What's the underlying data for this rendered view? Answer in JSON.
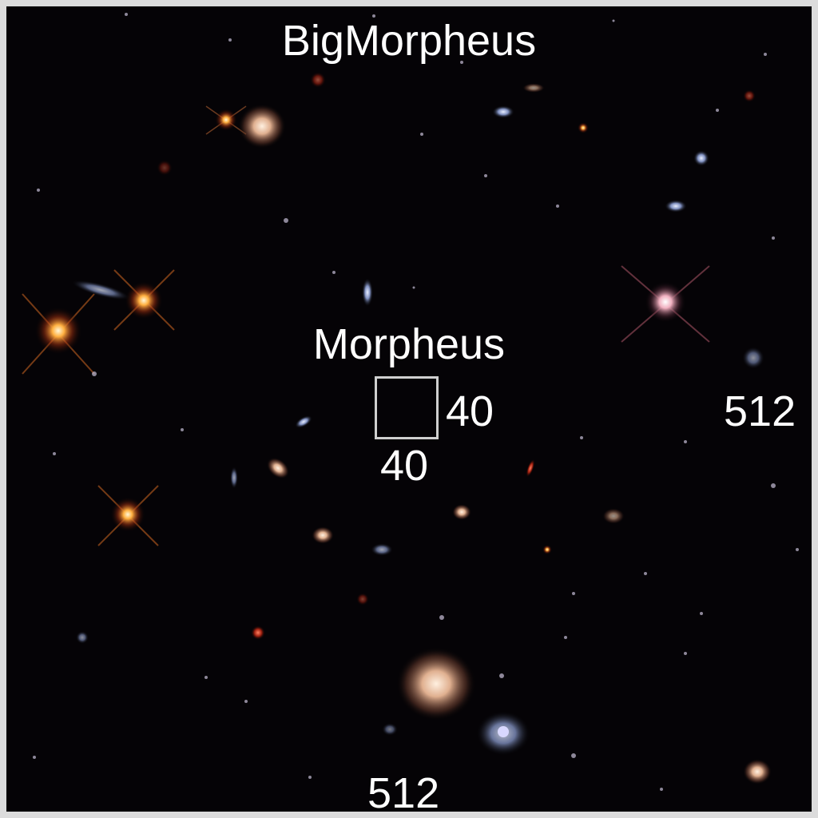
{
  "image": {
    "background_color": "#050306",
    "frame_color": "#dcdcdc",
    "description_tags": [
      "deep-field",
      "galaxies",
      "stars"
    ]
  },
  "labels": {
    "big_title": "BigMorpheus",
    "small_title": "Morpheus",
    "small_box_width": "40",
    "small_box_height": "40",
    "big_width": "512",
    "big_height": "512"
  },
  "colors": {
    "text": "#ffffff",
    "box_outline": "#cfcfcf"
  }
}
